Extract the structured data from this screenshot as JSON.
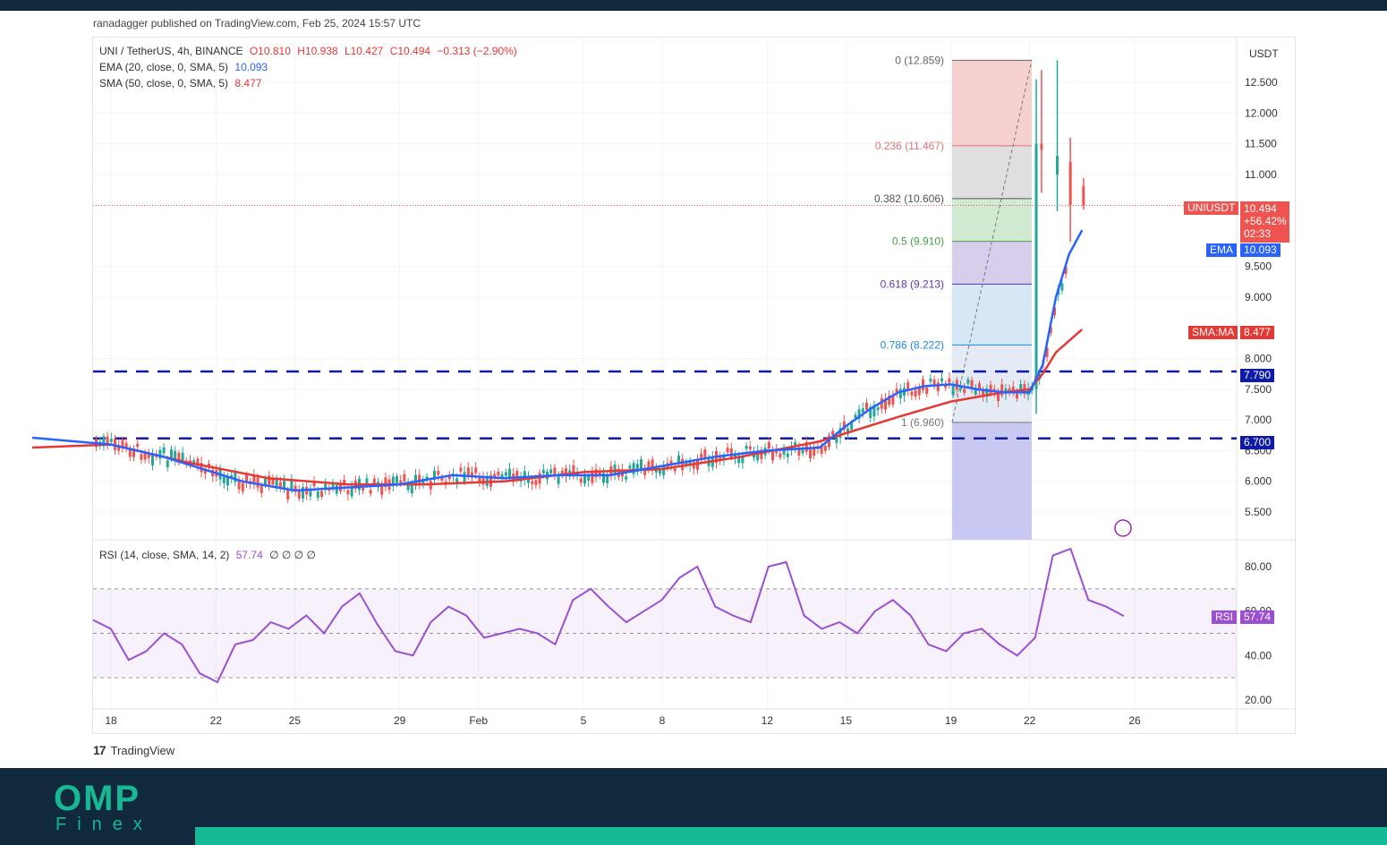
{
  "header": {
    "publisher": "ranadagger published on TradingView.com, Feb 25, 2024 15:57 UTC"
  },
  "legend": {
    "symbol": "UNI / TetherUS, 4h, BINANCE",
    "open": "O10.810",
    "high": "H10.938",
    "low": "L10.427",
    "close": "C10.494",
    "change": "−0.313 (−2.90%)",
    "ema_label": "EMA (20, close, 0, SMA, 5)",
    "ema_value": "10.093",
    "sma_label": "SMA (50, close, 0, SMA, 5)",
    "sma_value": "8.477",
    "rsi_label": "RSI (14, close, SMA, 14, 2)",
    "rsi_value": "57.74",
    "rsi_extra": "∅ ∅ ∅ ∅"
  },
  "currency": "USDT",
  "tags": {
    "price_name": "UNIUSDT",
    "price_value": "10.494",
    "price_change": "+56.42%",
    "price_timer": "02:33",
    "ema_name": "EMA",
    "ema_value": "10.093",
    "sma_name": "SMA:MA",
    "sma_value": "8.477",
    "res_value": "7.790",
    "sup_value": "6.700",
    "rsi_name": "RSI",
    "rsi_value": "57.74"
  },
  "brand": {
    "tv": "TradingView",
    "company_top": "OMP",
    "company_bottom": "Finex"
  },
  "colors": {
    "ema": "#2962ff",
    "sma": "#e53935",
    "rsi": "#9c4fd1",
    "up": "#26a69a",
    "down": "#ef5350",
    "level": "#0d1ba8",
    "footer": "#10293d",
    "accent": "#17b896"
  },
  "chart_data": {
    "type": "candlestick",
    "price_axis": {
      "ticks": [
        "5.500",
        "6.000",
        "6.500",
        "7.000",
        "7.500",
        "8.000",
        "9.000",
        "9.500",
        "11.000",
        "11.500",
        "12.000",
        "12.500"
      ],
      "ylim": [
        5.2,
        13.0
      ]
    },
    "time_axis": {
      "ticks": [
        "18",
        "22",
        "25",
        "29",
        "Feb",
        "5",
        "8",
        "12",
        "15",
        "19",
        "22",
        "26"
      ]
    },
    "ema20": [
      [
        15,
        6.71
      ],
      [
        18,
        6.6
      ],
      [
        20,
        6.4
      ],
      [
        23,
        6.0
      ],
      [
        25,
        5.85
      ],
      [
        27,
        5.9
      ],
      [
        29,
        5.95
      ],
      [
        31,
        6.1
      ],
      [
        33,
        6.05
      ],
      [
        35,
        6.1
      ],
      [
        37,
        6.1
      ],
      [
        39,
        6.25
      ],
      [
        41,
        6.4
      ],
      [
        43,
        6.5
      ],
      [
        45,
        6.55
      ],
      [
        46,
        6.9
      ],
      [
        47,
        7.2
      ],
      [
        48,
        7.45
      ],
      [
        49,
        7.55
      ],
      [
        50,
        7.58
      ],
      [
        51,
        7.5
      ],
      [
        52,
        7.45
      ],
      [
        53,
        7.45
      ],
      [
        53.5,
        7.9
      ],
      [
        54,
        9.0
      ],
      [
        54.5,
        9.7
      ],
      [
        55,
        10.093
      ]
    ],
    "sma50": [
      [
        15,
        6.55
      ],
      [
        18,
        6.6
      ],
      [
        21,
        6.3
      ],
      [
        24,
        6.05
      ],
      [
        27,
        5.95
      ],
      [
        30,
        5.95
      ],
      [
        33,
        6.0
      ],
      [
        36,
        6.15
      ],
      [
        39,
        6.2
      ],
      [
        42,
        6.4
      ],
      [
        45,
        6.65
      ],
      [
        48,
        7.05
      ],
      [
        50,
        7.3
      ],
      [
        52,
        7.45
      ],
      [
        53,
        7.5
      ],
      [
        53.5,
        7.75
      ],
      [
        54,
        8.1
      ],
      [
        55,
        8.477
      ]
    ],
    "candles_key": [
      [
        53.2,
        7.5,
        12.55,
        7.1,
        11.5
      ],
      [
        53.4,
        11.5,
        12.7,
        10.7,
        11.4
      ],
      [
        54,
        11.0,
        12.86,
        10.4,
        11.3
      ],
      [
        54.5,
        11.2,
        11.6,
        9.9,
        10.5
      ],
      [
        55,
        10.81,
        10.938,
        10.427,
        10.494
      ]
    ],
    "horizontal_levels": [
      {
        "price": 7.79,
        "label": "7.790"
      },
      {
        "price": 6.7,
        "label": "6.700"
      }
    ],
    "last_price": 10.494,
    "fibonacci": [
      {
        "ratio": "0",
        "price": 12.859,
        "label": "0 (12.859)"
      },
      {
        "ratio": "0.236",
        "price": 11.467,
        "label": "0.236 (11.467)"
      },
      {
        "ratio": "0.382",
        "price": 10.606,
        "label": "0.382 (10.606)"
      },
      {
        "ratio": "0.5",
        "price": 9.91,
        "label": "0.5 (9.910)"
      },
      {
        "ratio": "0.618",
        "price": 9.213,
        "label": "0.618 (9.213)"
      },
      {
        "ratio": "0.786",
        "price": 8.222,
        "label": "0.786 (8.222)"
      },
      {
        "ratio": "1",
        "price": 6.96,
        "label": "1 (6.960)"
      }
    ],
    "rsi": {
      "ticks": [
        "20.00",
        "40.00",
        "60.00",
        "80.00"
      ],
      "overbought": 70,
      "oversold": 30,
      "last": 57.74,
      "values": [
        56,
        52,
        38,
        42,
        50,
        45,
        32,
        28,
        45,
        47,
        55,
        52,
        58,
        50,
        62,
        68,
        54,
        42,
        40,
        55,
        62,
        58,
        48,
        50,
        52,
        50,
        45,
        65,
        70,
        62,
        55,
        60,
        65,
        75,
        80,
        62,
        58,
        55,
        80,
        82,
        58,
        52,
        55,
        50,
        60,
        65,
        58,
        45,
        42,
        50,
        52,
        45,
        40,
        48,
        85,
        88,
        65,
        62,
        57.74
      ]
    }
  }
}
